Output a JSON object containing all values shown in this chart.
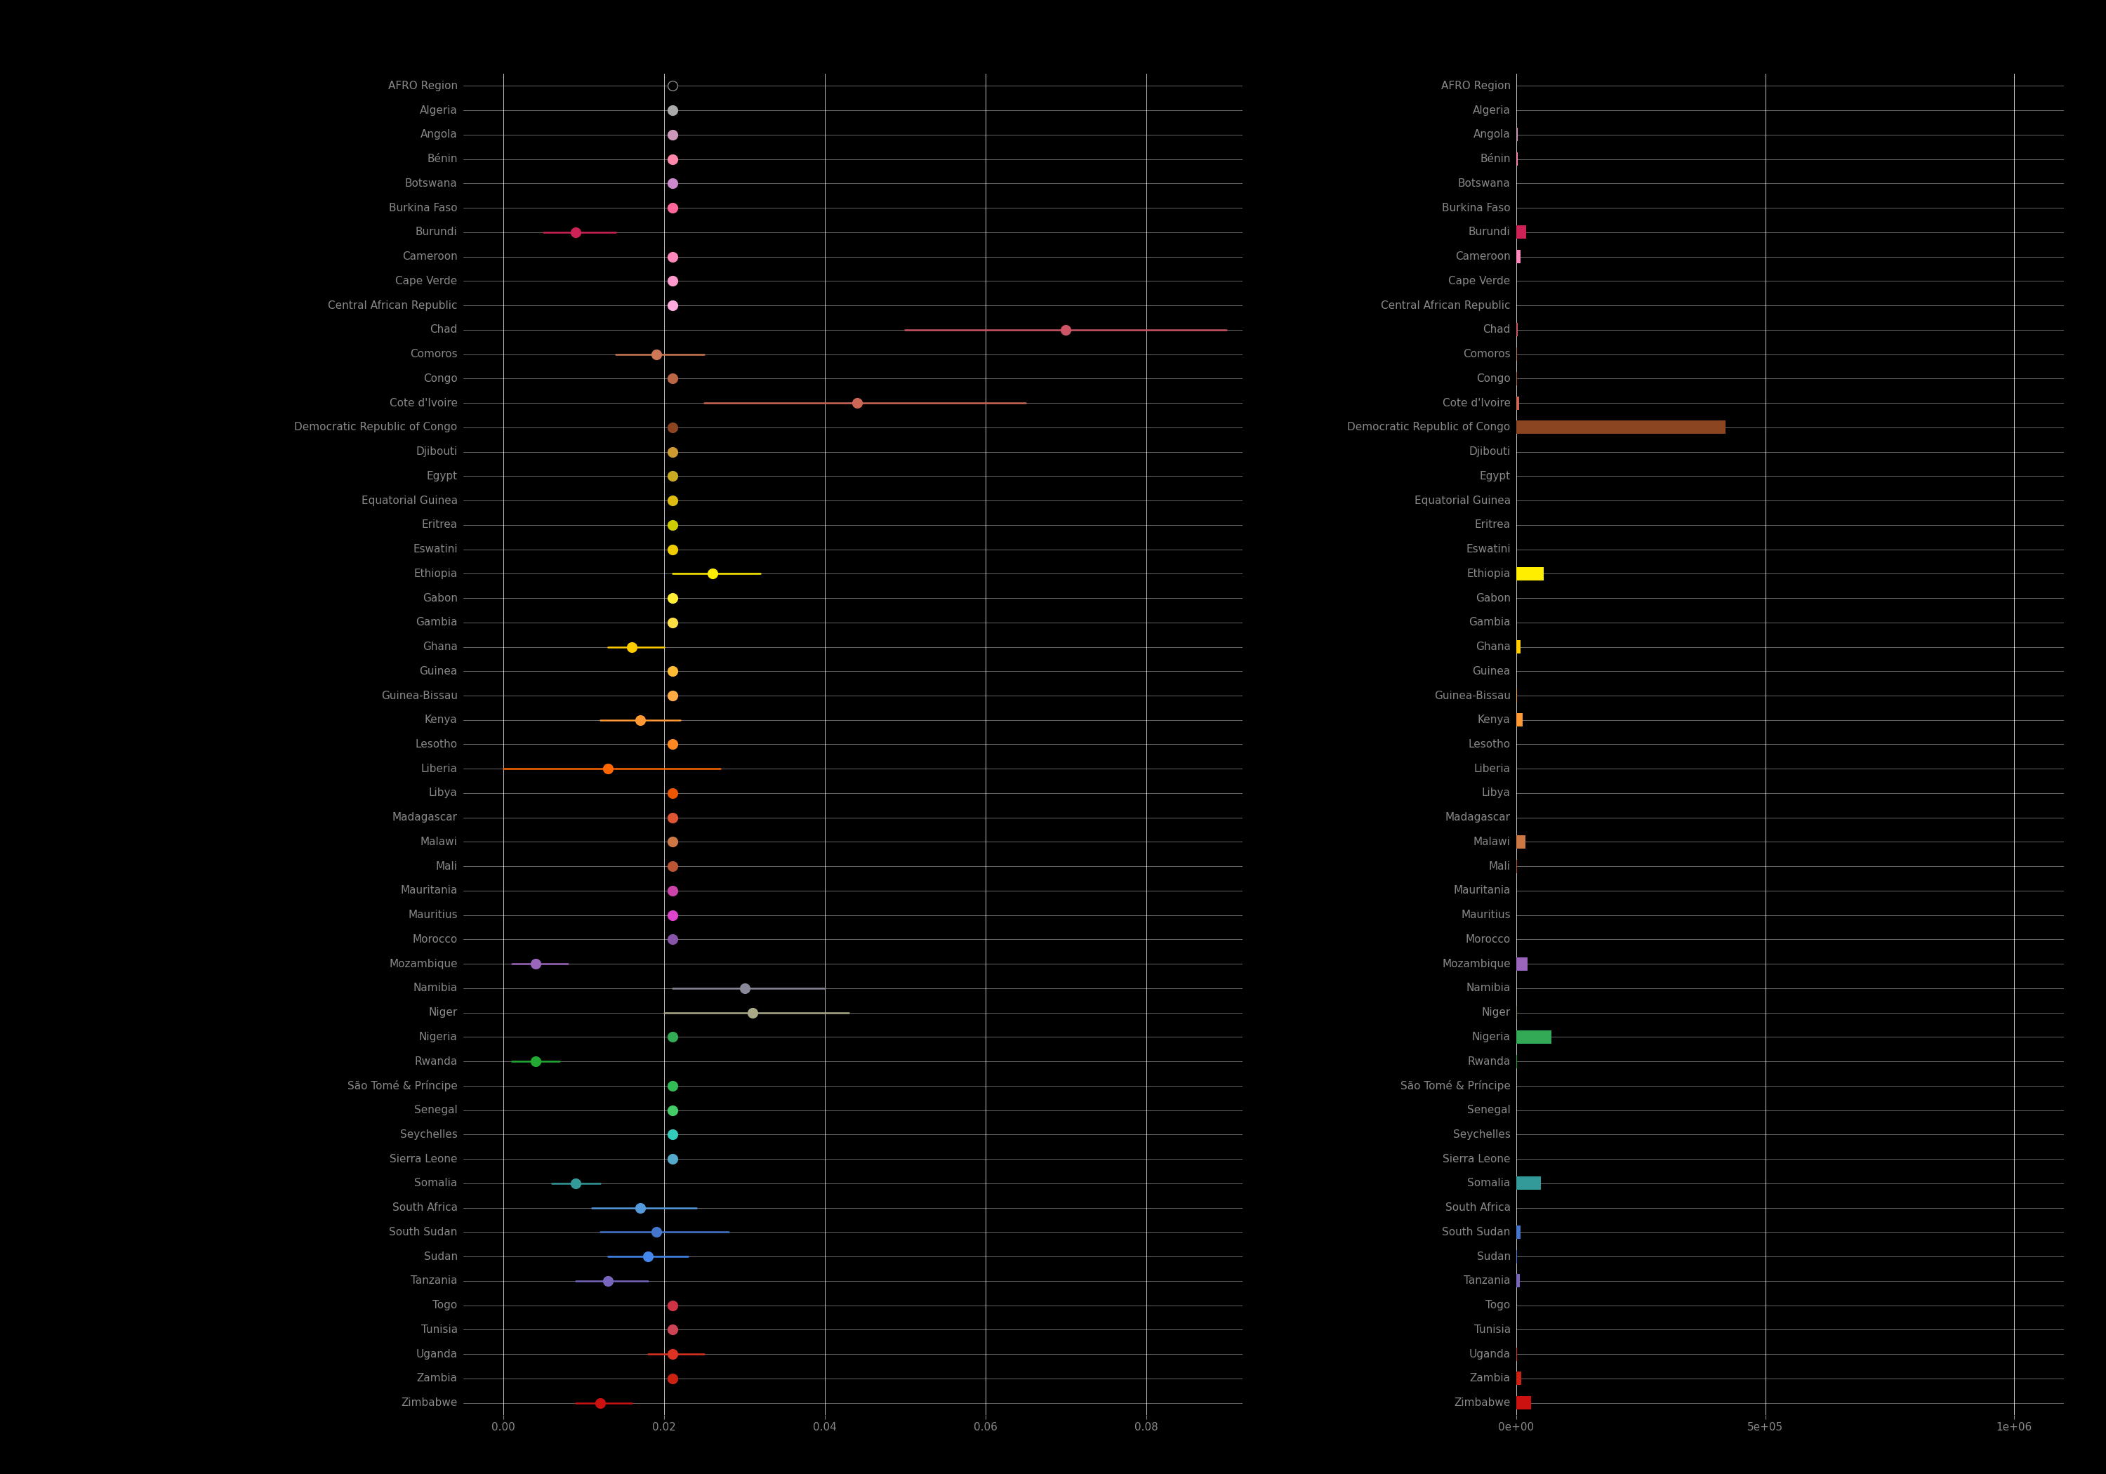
{
  "countries": [
    "AFRO Region",
    "Algeria",
    "Angola",
    "Bénin",
    "Botswana",
    "Burkina Faso",
    "Burundi",
    "Cameroon",
    "Cape Verde",
    "Central African Republic",
    "Chad",
    "Comoros",
    "Congo",
    "Cote d'Ivoire",
    "Democratic Republic of Congo",
    "Djibouti",
    "Egypt",
    "Equatorial Guinea",
    "Eritrea",
    "Eswatini",
    "Ethiopia",
    "Gabon",
    "Gambia",
    "Ghana",
    "Guinea",
    "Guinea-Bissau",
    "Kenya",
    "Lesotho",
    "Liberia",
    "Libya",
    "Madagascar",
    "Malawi",
    "Mali",
    "Mauritania",
    "Mauritius",
    "Morocco",
    "Mozambique",
    "Namibia",
    "Niger",
    "Nigeria",
    "Rwanda",
    "São Tomé & Príncipe",
    "Senegal",
    "Seychelles",
    "Sierra Leone",
    "Somalia",
    "South Africa",
    "South Sudan",
    "Sudan",
    "Tanzania",
    "Togo",
    "Tunisia",
    "Uganda",
    "Zambia",
    "Zimbabwe"
  ],
  "cfr": [
    0.021,
    0.021,
    0.021,
    0.021,
    0.021,
    0.021,
    0.009,
    0.021,
    0.021,
    0.021,
    0.07,
    0.019,
    0.021,
    0.044,
    0.021,
    0.021,
    0.021,
    0.021,
    0.021,
    0.021,
    0.026,
    0.021,
    0.021,
    0.016,
    0.021,
    0.021,
    0.017,
    0.021,
    0.013,
    0.021,
    0.021,
    0.021,
    0.021,
    0.021,
    0.021,
    0.021,
    0.004,
    0.03,
    0.031,
    0.021,
    0.004,
    0.021,
    0.021,
    0.021,
    0.021,
    0.009,
    0.017,
    0.019,
    0.018,
    0.013,
    0.021,
    0.021,
    0.021,
    0.021,
    0.012
  ],
  "cfr_lower": [
    0.0205,
    0.021,
    0.021,
    0.021,
    0.021,
    0.021,
    0.005,
    0.021,
    0.021,
    0.021,
    0.05,
    0.014,
    0.021,
    0.025,
    0.021,
    0.021,
    0.021,
    0.021,
    0.021,
    0.021,
    0.021,
    0.021,
    0.021,
    0.013,
    0.021,
    0.021,
    0.012,
    0.021,
    0.0,
    0.021,
    0.021,
    0.021,
    0.021,
    0.021,
    0.021,
    0.021,
    0.001,
    0.021,
    0.02,
    0.021,
    0.001,
    0.021,
    0.021,
    0.021,
    0.021,
    0.006,
    0.011,
    0.012,
    0.013,
    0.009,
    0.021,
    0.021,
    0.018,
    0.021,
    0.009
  ],
  "cfr_upper": [
    0.0215,
    0.021,
    0.021,
    0.021,
    0.021,
    0.021,
    0.014,
    0.021,
    0.021,
    0.021,
    0.09,
    0.025,
    0.021,
    0.065,
    0.021,
    0.021,
    0.021,
    0.021,
    0.021,
    0.021,
    0.032,
    0.021,
    0.021,
    0.02,
    0.021,
    0.021,
    0.022,
    0.021,
    0.027,
    0.021,
    0.021,
    0.021,
    0.021,
    0.021,
    0.021,
    0.021,
    0.008,
    0.04,
    0.043,
    0.021,
    0.007,
    0.021,
    0.021,
    0.021,
    0.021,
    0.012,
    0.024,
    0.028,
    0.023,
    0.018,
    0.021,
    0.021,
    0.025,
    0.021,
    0.016
  ],
  "total_cases": [
    0,
    0,
    3000,
    3000,
    0,
    0,
    20000,
    8000,
    0,
    0,
    2500,
    2000,
    1000,
    5000,
    420000,
    0,
    0,
    0,
    0,
    0,
    55000,
    0,
    500,
    8000,
    500,
    1000,
    12000,
    0,
    500,
    0,
    0,
    18000,
    1000,
    500,
    0,
    0,
    22000,
    0,
    2000,
    70000,
    1500,
    0,
    0,
    0,
    0,
    50000,
    0,
    8000,
    2000,
    7000,
    0,
    0,
    2000,
    10000,
    30000
  ],
  "colors": [
    "#888888",
    "#aaaaaa",
    "#cc99bb",
    "#ff88aa",
    "#cc88cc",
    "#ff6699",
    "#cc2255",
    "#ff88bb",
    "#ff99cc",
    "#ffaadd",
    "#cc5566",
    "#cc7755",
    "#bb6644",
    "#cc6655",
    "#8b4520",
    "#cc9933",
    "#ccaa22",
    "#ddbb11",
    "#cccc00",
    "#eecc00",
    "#ffee00",
    "#ffee33",
    "#ffdd44",
    "#ffcc00",
    "#ffbb33",
    "#ffaa44",
    "#ff9933",
    "#ff8822",
    "#ff6600",
    "#ee5500",
    "#dd5533",
    "#cc7744",
    "#bb5533",
    "#cc44aa",
    "#dd44cc",
    "#8855aa",
    "#9966bb",
    "#888899",
    "#aaaa88",
    "#33aa55",
    "#22aa33",
    "#33bb55",
    "#44cc66",
    "#33ccbb",
    "#55aacc",
    "#339999",
    "#5599dd",
    "#4477cc",
    "#4488ee",
    "#7766bb",
    "#cc3344",
    "#cc4455",
    "#dd3322",
    "#cc2211",
    "#cc1111"
  ],
  "background_color": "#000000",
  "text_color": "#888888",
  "xlim_cfr": [
    -0.005,
    0.092
  ],
  "xticks_cfr": [
    0.0,
    0.02,
    0.04,
    0.06,
    0.08
  ],
  "xlim_cases": [
    0,
    1100000
  ],
  "xticks_cases": [
    0,
    500000,
    1000000
  ]
}
